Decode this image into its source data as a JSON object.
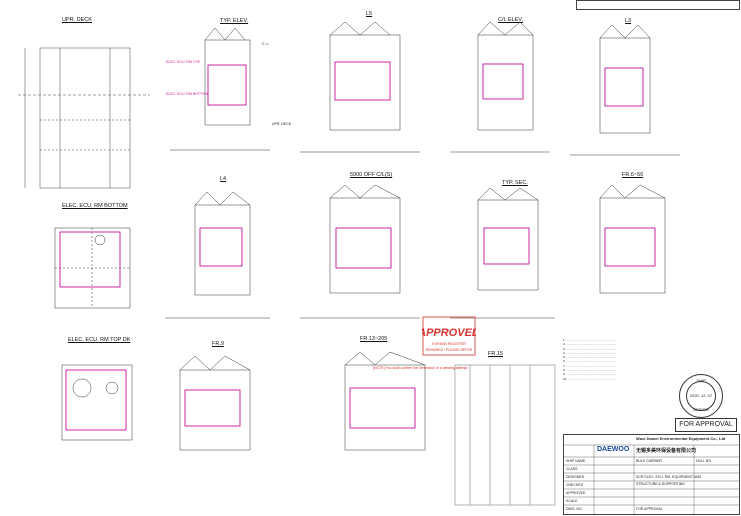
{
  "views": {
    "upr_deck": "UPR. DECK",
    "typ_elev": "TYP. ELEV.",
    "l5": "L5",
    "c_elev": "C/L ELEV.",
    "l3": "L3",
    "elec_bottom": "ELEC. ECU. RM BOTTOM",
    "l4": "L4",
    "off_cl": "5900 OFF C/L(S)",
    "typ_sec": "TYP. SEC.",
    "fr_sec": "FR.6~56",
    "elec_top": "ELEC. ECU. RM TOP DK",
    "fr9": "FR.9",
    "fr13": "FR.13~205",
    "fr15": "FR.15"
  },
  "labels": {
    "upr_deck": "UPR. DECK",
    "c_l": "C. L.",
    "elec_ecu_rm_top": "ELEC. ECU. RM TOP",
    "elec_ecu_rm_bottom": "ELEC. ECU. RM BOTTOM",
    "note_red": "[NOTE] You shall confirm the dimension or a welding attempt."
  },
  "stamp": {
    "title": "APPROVED",
    "line1": "KOREAN REGISTER",
    "line2": "REMARKS / PLEASE REFER",
    "color": "#d6332f"
  },
  "for_approval": "FOR APPROVAL",
  "seal": {
    "top": "SHIP",
    "year": "2020. 12. 07",
    "bottom": "DESIGN"
  },
  "title_block": {
    "company_en": "Wuxi Damei Environmental Equipment Co., Ltd",
    "company_cn": "无锡多美环保设备有限公司",
    "logo": "DAEWOO",
    "project": "BULK CARRIER",
    "drawing_title_1": "SCR ELEC. ECU. RM. EQUIPMENT AND",
    "drawing_title_2": "STRUCTURE & SUPPORTING",
    "sign_labels": [
      "SHIP NAME",
      "CLASS",
      "DESIGNED",
      "CHECKED",
      "APPROVED",
      "SCALE",
      "DWG. NO."
    ],
    "for_approval_text": "FOR APPROVAL",
    "hull_no": "HULL NO."
  },
  "colors": {
    "magenta": "#c0149b",
    "line": "#333333",
    "watermark": "#b0c4de"
  }
}
